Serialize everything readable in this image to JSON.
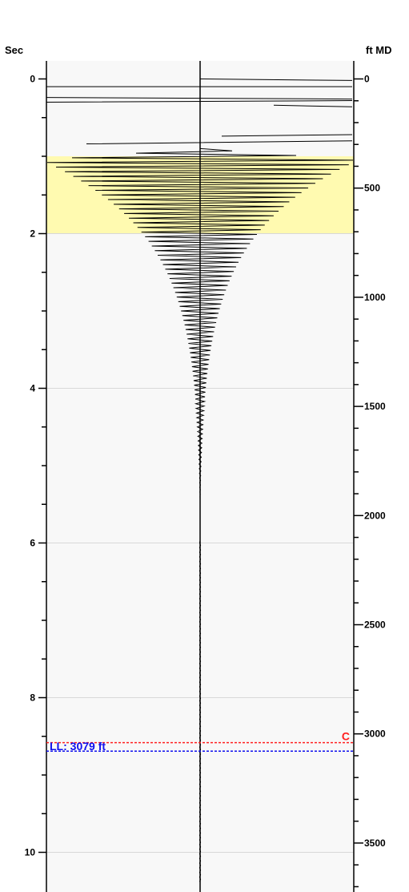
{
  "chart_data": {
    "type": "line",
    "left_axis": {
      "label": "Sec",
      "range": [
        -0.2,
        10.35
      ],
      "ticks": [
        0,
        2,
        4,
        6,
        8,
        10
      ],
      "minor_step": 0.5
    },
    "right_axis": {
      "label": "ft MD",
      "range": [
        -40,
        3740
      ],
      "ticks": [
        0,
        500,
        1000,
        1500,
        2000,
        2500,
        3000,
        3500
      ],
      "minor_step": 100
    },
    "highlight_band": {
      "from_sec": 1.0,
      "to_sec": 2.0,
      "color": "#fffab0"
    },
    "gridlines_sec": [
      2,
      4,
      6,
      8,
      10
    ],
    "trace": {
      "type": "decaying-oscillation",
      "center_line": true,
      "start_sec": 0.0,
      "onset_sec": 0.9,
      "peak_sec": 1.05,
      "decay_to_zero_sec": 6.0,
      "approx_period_sec": 0.06
    },
    "markers": [
      {
        "label": "C",
        "depth_ft": 3040,
        "color": "#ff2020",
        "style": "dashed"
      },
      {
        "label": "LL: 3079 ft",
        "depth_ft": 3079,
        "color": "#1010ee",
        "style": "dashed"
      }
    ]
  }
}
